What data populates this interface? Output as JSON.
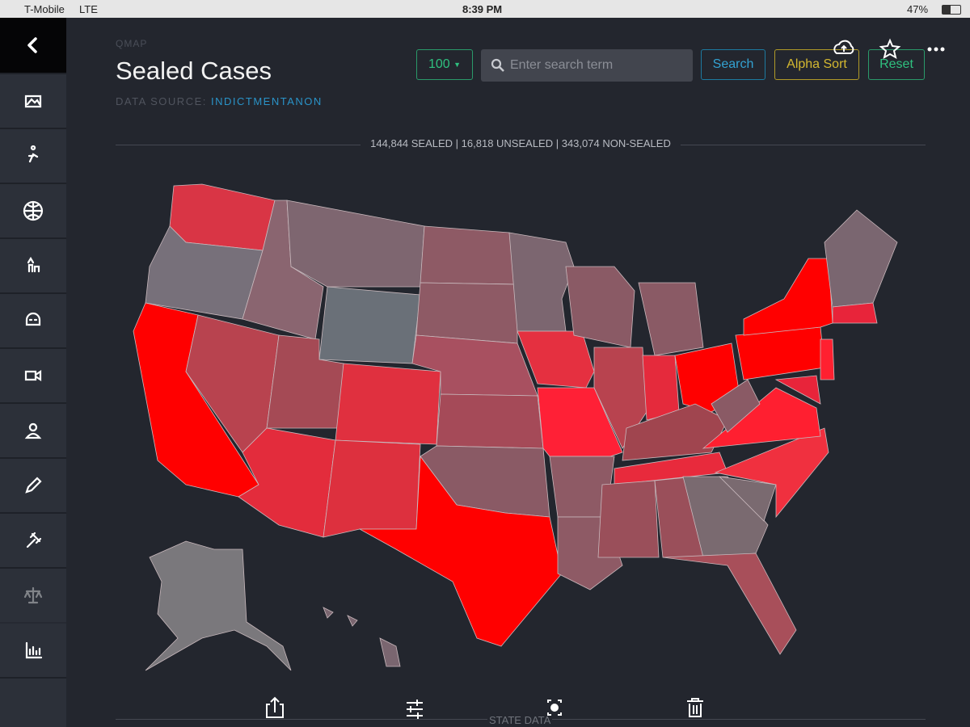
{
  "status_bar": {
    "carrier": "T-Mobile",
    "network": "LTE",
    "time": "8:39 PM",
    "battery": "47%"
  },
  "header": {
    "overline": "QMAP",
    "title": "Sealed Cases",
    "source_label": "DATA SOURCE:",
    "source_name": "INDICTMENTANON"
  },
  "toolbar": {
    "page_size": "100",
    "search_placeholder": "Enter search term",
    "search_button": "Search",
    "sort_button": "Alpha Sort",
    "reset_button": "Reset"
  },
  "summary": "144,844 SEALED | 16,818 UNSEALED | 343,074 NON-SEALED",
  "footer": {
    "section_label": "STATE DATA"
  }
}
